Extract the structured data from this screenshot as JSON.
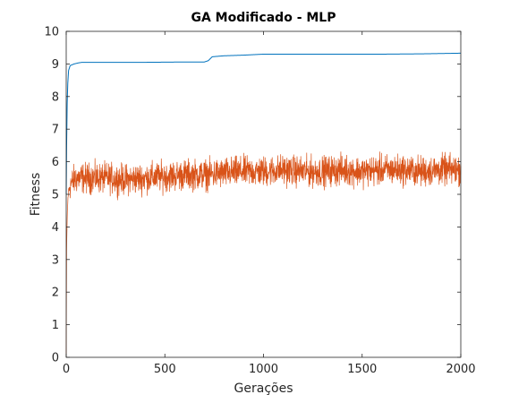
{
  "chart_data": {
    "type": "line",
    "title": "GA Modificado - MLP",
    "xlabel": "Gerações",
    "ylabel": "Fitness",
    "xlim": [
      0,
      2000
    ],
    "ylim": [
      0,
      10
    ],
    "xticks": [
      0,
      500,
      1000,
      1500,
      2000
    ],
    "yticks": [
      0,
      1,
      2,
      3,
      4,
      5,
      6,
      7,
      8,
      9,
      10
    ],
    "grid": false,
    "legend": "none",
    "series": [
      {
        "color": "#0072BD",
        "description": "best fitness per generation",
        "x": [
          0,
          2,
          5,
          8,
          12,
          20,
          40,
          60,
          80,
          100,
          200,
          400,
          600,
          700,
          720,
          740,
          800,
          900,
          1000,
          1200,
          1400,
          1600,
          1800,
          2000
        ],
        "y": [
          5.0,
          6.5,
          7.8,
          8.4,
          8.8,
          8.95,
          9.0,
          9.03,
          9.05,
          9.05,
          9.05,
          9.05,
          9.06,
          9.06,
          9.1,
          9.22,
          9.25,
          9.27,
          9.3,
          9.3,
          9.3,
          9.3,
          9.31,
          9.33
        ]
      },
      {
        "color": "#D95319",
        "description": "mean fitness per generation (noisy)",
        "x": [
          0,
          2,
          5,
          10,
          20,
          50,
          100,
          200,
          300,
          400,
          500,
          600,
          700,
          800,
          900,
          1000,
          1100,
          1200,
          1300,
          1400,
          1500,
          1600,
          1700,
          1800,
          1900,
          2000
        ],
        "y": [
          0.0,
          3.2,
          4.3,
          5.0,
          5.3,
          5.5,
          5.5,
          5.5,
          5.45,
          5.5,
          5.55,
          5.6,
          5.6,
          5.65,
          5.7,
          5.7,
          5.75,
          5.7,
          5.7,
          5.75,
          5.7,
          5.75,
          5.75,
          5.7,
          5.75,
          5.75
        ],
        "noise_amplitude": 0.35
      }
    ]
  }
}
